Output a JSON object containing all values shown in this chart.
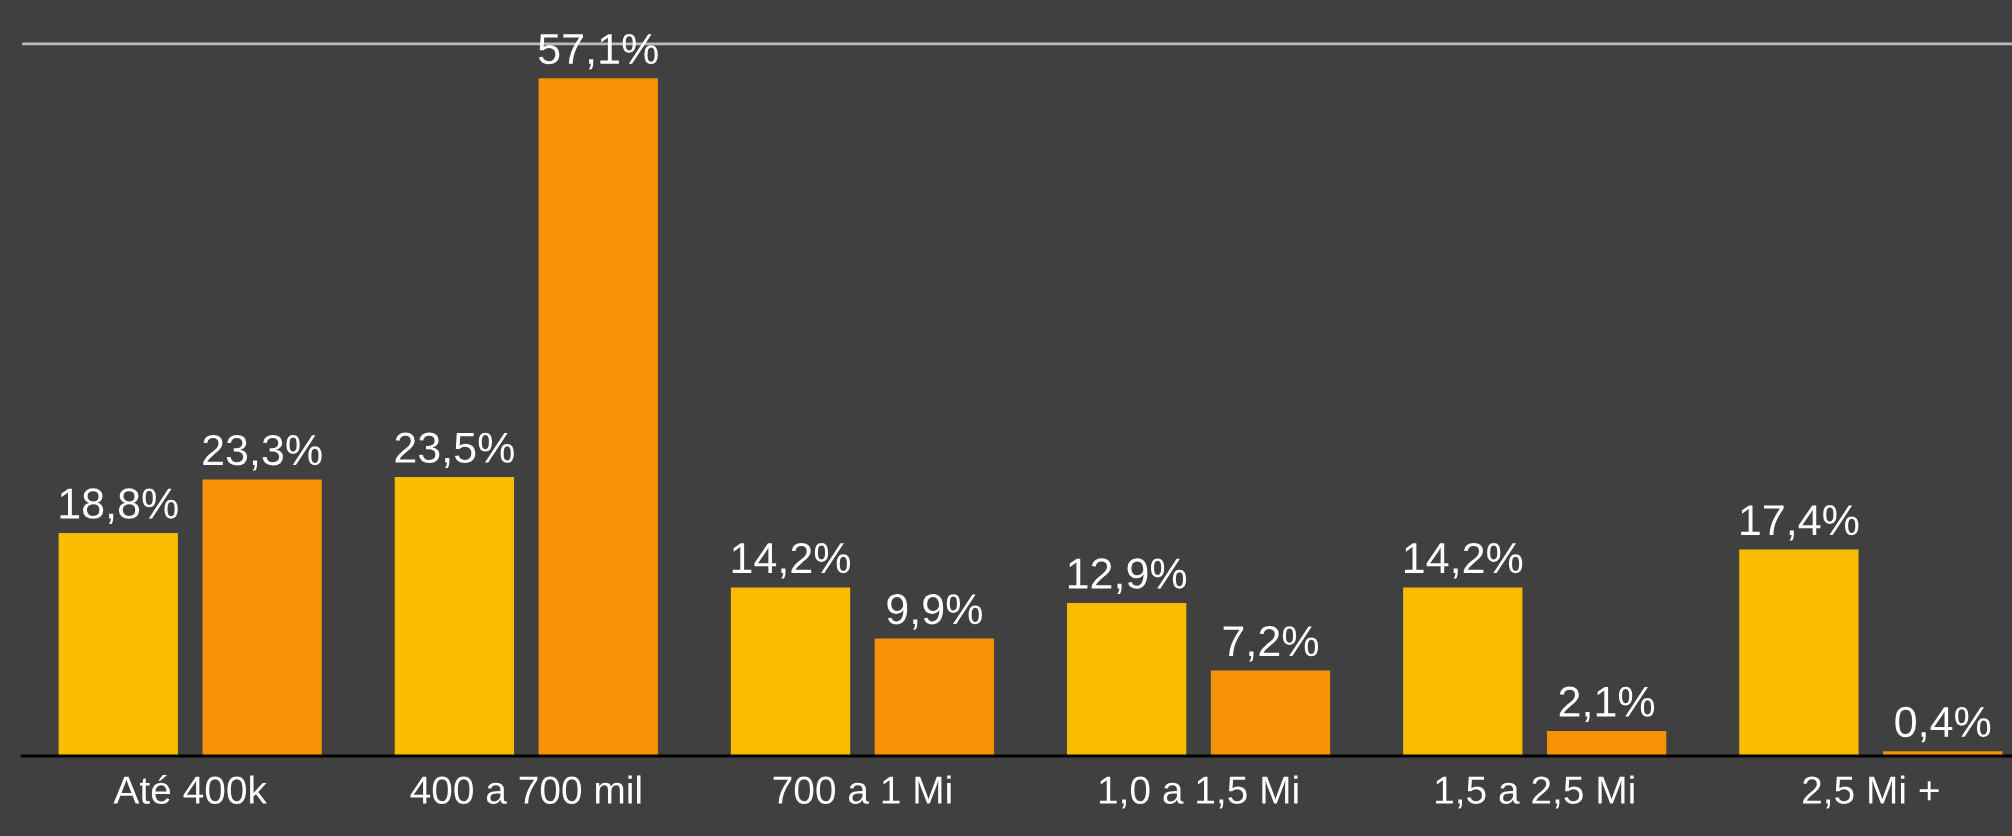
{
  "chart_data": {
    "type": "bar",
    "categories": [
      "Até 400k",
      "400 a 700 mil",
      "700 a 1 Mi",
      "1,0 a 1,5 Mi",
      "1,5 a 2,5 Mi",
      "2,5 Mi +"
    ],
    "series": [
      {
        "color": "#f9bc00",
        "values": [
          18.8,
          23.5,
          14.2,
          12.9,
          14.2,
          17.4
        ],
        "value_labels": [
          "18,8%",
          "23,5%",
          "14,2%",
          "12,9%",
          "14,2%",
          "17,4%"
        ]
      },
      {
        "color": "#f79108",
        "values": [
          23.3,
          57.1,
          9.9,
          7.2,
          2.1,
          0.4
        ],
        "value_labels": [
          "23,3%",
          "57,1%",
          "9,9%",
          "7,2%",
          "2,1%",
          "0,4%"
        ]
      }
    ],
    "ylim": [
      0,
      63.7
    ],
    "ref_lines": [
      {
        "axis": "y",
        "value": 60,
        "color": "#bbbbbb"
      }
    ],
    "tick_labels": "x"
  }
}
